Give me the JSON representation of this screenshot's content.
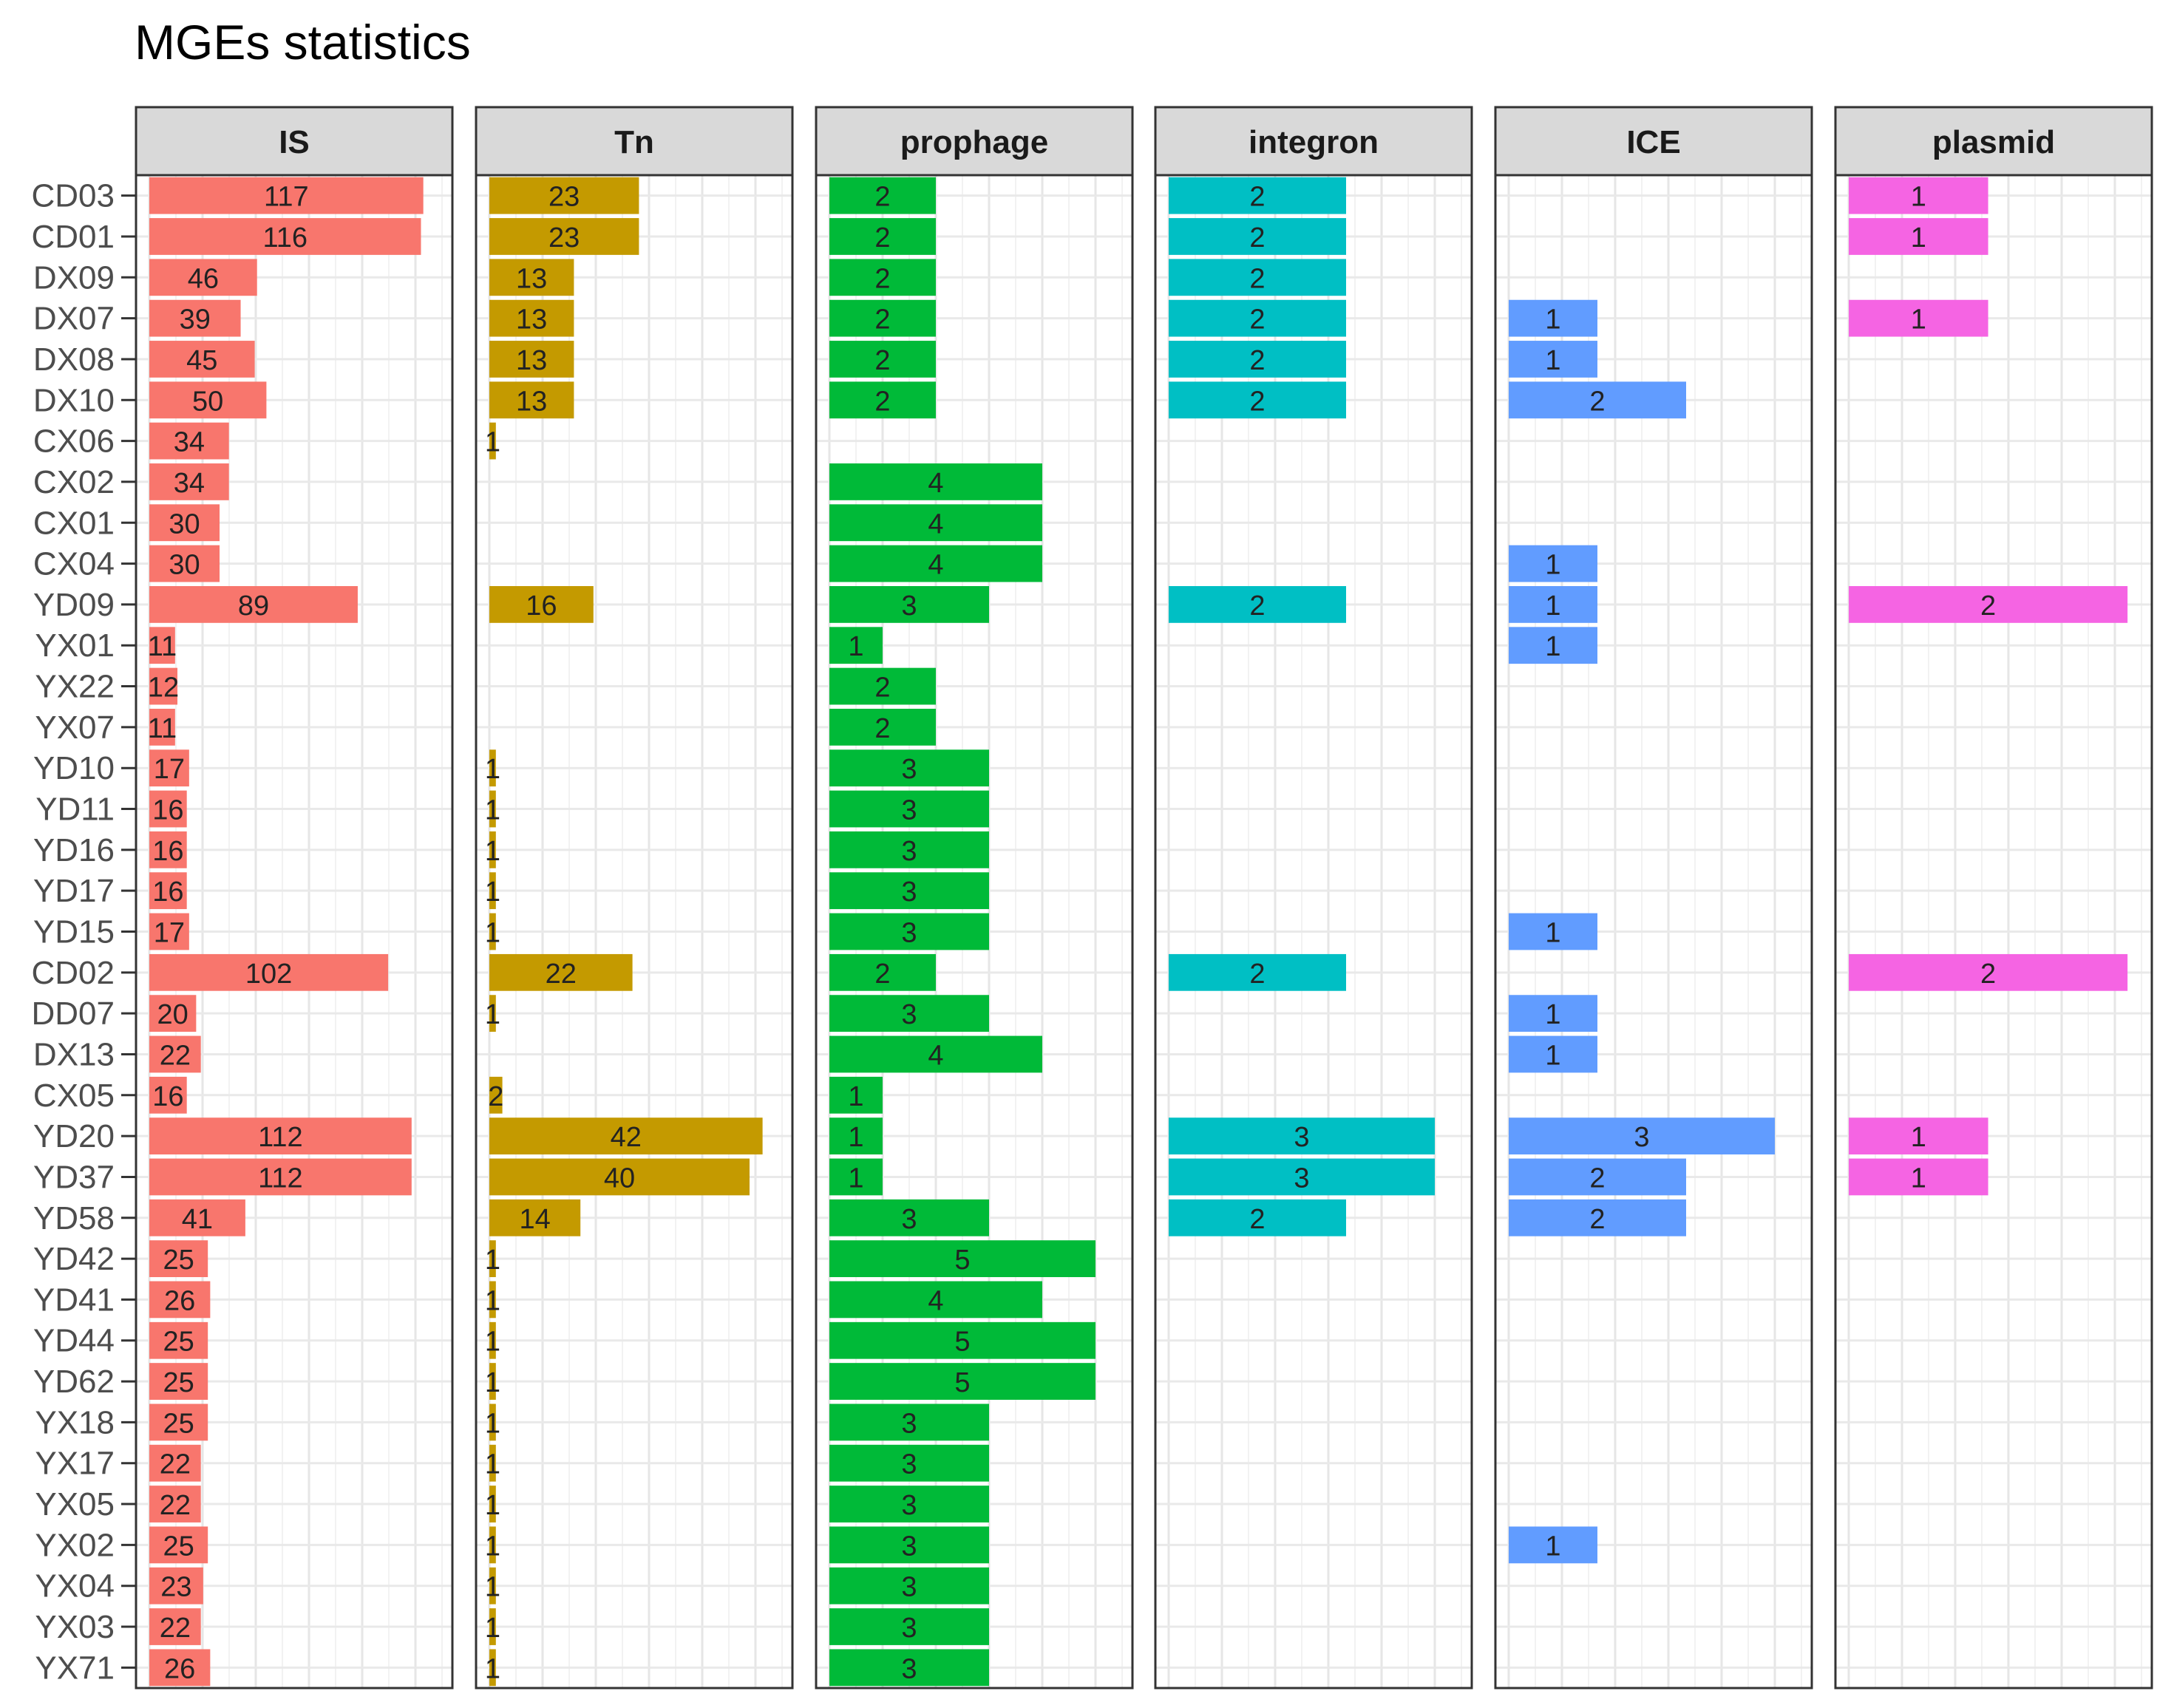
{
  "chart_data": {
    "type": "bar",
    "orientation": "horizontal",
    "layout": "faceted",
    "title": "MGEs statistics",
    "xlabel": "",
    "ylabel": "",
    "grid": true,
    "legend": "none",
    "categories": [
      "CD03",
      "CD01",
      "DX09",
      "DX07",
      "DX08",
      "DX10",
      "CX06",
      "CX02",
      "CX01",
      "CX04",
      "YD09",
      "YX01",
      "YX22",
      "YX07",
      "YD10",
      "YD11",
      "YD16",
      "YD17",
      "YD15",
      "CD02",
      "DD07",
      "DX13",
      "CX05",
      "YD20",
      "YD37",
      "YD58",
      "YD42",
      "YD41",
      "YD44",
      "YD62",
      "YX18",
      "YX17",
      "YX05",
      "YX02",
      "YX04",
      "YX03",
      "YX71"
    ],
    "series": [
      {
        "name": "IS",
        "color": "#F8766D",
        "xlim": [
          0,
          125
        ],
        "values": [
          117,
          116,
          46,
          39,
          45,
          50,
          34,
          34,
          30,
          30,
          89,
          11,
          12,
          11,
          17,
          16,
          16,
          16,
          17,
          102,
          20,
          22,
          16,
          112,
          112,
          41,
          25,
          26,
          25,
          25,
          25,
          22,
          22,
          25,
          23,
          22,
          26
        ]
      },
      {
        "name": "Tn",
        "color": "#C49A00",
        "xlim": [
          0,
          45
        ],
        "values": [
          23,
          23,
          13,
          13,
          13,
          13,
          1,
          null,
          null,
          null,
          16,
          null,
          null,
          null,
          1,
          1,
          1,
          1,
          1,
          22,
          1,
          null,
          2,
          42,
          40,
          14,
          1,
          1,
          1,
          1,
          1,
          1,
          1,
          1,
          1,
          1,
          1
        ]
      },
      {
        "name": "prophage",
        "color": "#00BA38",
        "xlim": [
          0,
          5.5
        ],
        "values": [
          2,
          2,
          2,
          2,
          2,
          2,
          null,
          4,
          4,
          4,
          3,
          1,
          2,
          2,
          3,
          3,
          3,
          3,
          3,
          2,
          3,
          4,
          1,
          1,
          1,
          3,
          5,
          4,
          5,
          5,
          3,
          3,
          3,
          3,
          3,
          3,
          3
        ]
      },
      {
        "name": "integron",
        "color": "#00BFC4",
        "xlim": [
          0,
          3.3
        ],
        "values": [
          2,
          2,
          2,
          2,
          2,
          2,
          null,
          null,
          null,
          null,
          2,
          null,
          null,
          null,
          null,
          null,
          null,
          null,
          null,
          2,
          null,
          null,
          null,
          3,
          3,
          2,
          null,
          null,
          null,
          null,
          null,
          null,
          null,
          null,
          null,
          null,
          null
        ]
      },
      {
        "name": "ICE",
        "color": "#619CFF",
        "xlim": [
          0,
          3.3
        ],
        "values": [
          null,
          null,
          null,
          1,
          1,
          2,
          null,
          null,
          null,
          1,
          1,
          1,
          null,
          null,
          null,
          null,
          null,
          null,
          1,
          null,
          1,
          1,
          null,
          3,
          2,
          2,
          null,
          null,
          null,
          null,
          null,
          null,
          null,
          1,
          null,
          null,
          null
        ]
      },
      {
        "name": "plasmid",
        "color": "#F564E3",
        "xlim": [
          0,
          2.1
        ],
        "values": [
          1,
          1,
          null,
          1,
          null,
          null,
          null,
          null,
          null,
          null,
          2,
          null,
          null,
          null,
          null,
          null,
          null,
          null,
          null,
          2,
          null,
          null,
          null,
          1,
          1,
          null,
          null,
          null,
          null,
          null,
          null,
          null,
          null,
          null,
          null,
          null,
          null
        ]
      }
    ]
  }
}
